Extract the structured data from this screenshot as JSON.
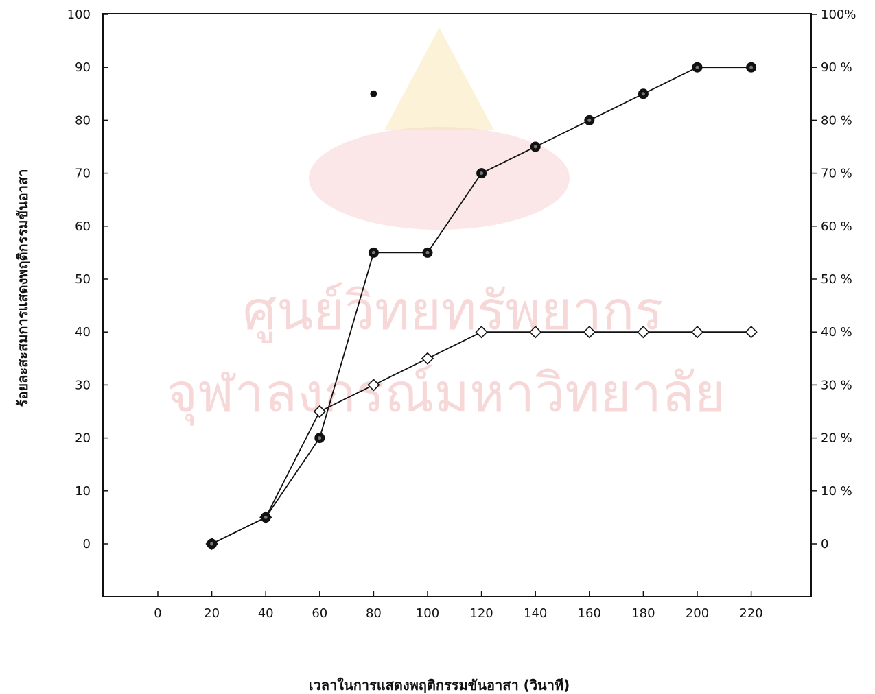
{
  "chart_data": {
    "type": "line",
    "xlabel": "เวลาในการแสดงพฤติกรรมขันอาสา (วินาที)",
    "ylabel": "ร้อยละสะสมการแสดงพฤติกรรมขันอาสา",
    "x_ticks": [
      "0",
      "20",
      "40",
      "60",
      "80",
      "100",
      "120",
      "140",
      "160",
      "180",
      "200",
      "220"
    ],
    "y_ticks_left": [
      "0",
      "10",
      "20",
      "30",
      "40",
      "50",
      "60",
      "70",
      "80",
      "90",
      "100"
    ],
    "y_ticks_right": [
      "0",
      "10 %",
      "20 %",
      "30 %",
      "40 %",
      "50 %",
      "60 %",
      "70 %",
      "80 %",
      "90 %",
      "100%"
    ],
    "xlim": [
      -20,
      240
    ],
    "ylim": [
      -10,
      100
    ],
    "grid": false,
    "legend": "none",
    "series": [
      {
        "marker": "filled-circle",
        "x": [
          20,
          40,
          60,
          80,
          100,
          120,
          140,
          160,
          180,
          200,
          220
        ],
        "y": [
          0,
          5,
          20,
          55,
          55,
          70,
          75,
          80,
          85,
          90,
          90
        ]
      },
      {
        "marker": "open-diamond",
        "x": [
          20,
          40,
          60,
          80,
          100,
          120,
          140,
          160,
          180,
          200,
          220
        ],
        "y": [
          0,
          5,
          25,
          30,
          35,
          40,
          40,
          40,
          40,
          40,
          40
        ]
      }
    ],
    "annotations": [
      {
        "marker": "filled-circle",
        "x": 80,
        "y": 85
      }
    ],
    "watermark": {
      "line1": "ศูนย์วิทยทรัพยากร",
      "line2": "จุฬาลงกรณ์มหาวิทยาลัย"
    }
  }
}
